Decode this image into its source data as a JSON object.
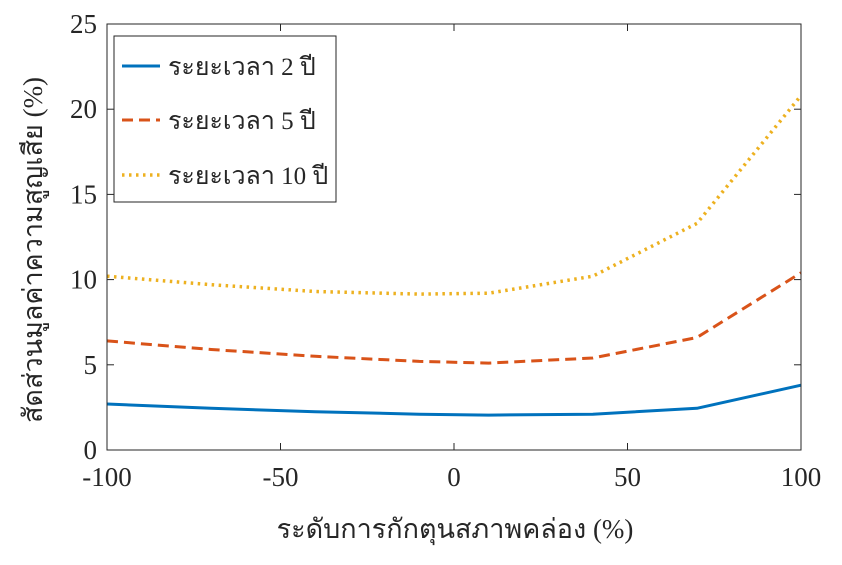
{
  "chart_data": {
    "type": "line",
    "title": "",
    "xlabel": "ระดับการกักตุนสภาพคล่อง (%)",
    "ylabel": "สัดส่วนมูลค่าความสูญเสีย (%)",
    "xlim": [
      -100,
      100
    ],
    "ylim": [
      0,
      25
    ],
    "xticks": [
      -100,
      -50,
      0,
      50,
      100
    ],
    "yticks": [
      0,
      5,
      10,
      15,
      20,
      25
    ],
    "x": [
      -100,
      -70,
      -40,
      -10,
      10,
      40,
      70,
      100
    ],
    "series": [
      {
        "name": "ระยะเวลา 2 ปี",
        "values": [
          2.7,
          2.45,
          2.25,
          2.1,
          2.05,
          2.1,
          2.45,
          3.8
        ],
        "color": "#0072BD",
        "style": "solid"
      },
      {
        "name": "ระยะเวลา 5 ปี",
        "values": [
          6.4,
          5.9,
          5.5,
          5.2,
          5.1,
          5.4,
          6.6,
          10.4
        ],
        "color": "#D95319",
        "style": "dashed"
      },
      {
        "name": "ระยะเวลา 10 ปี",
        "values": [
          10.2,
          9.7,
          9.3,
          9.15,
          9.2,
          10.2,
          13.3,
          20.8
        ],
        "color": "#EDB120",
        "style": "dotted"
      }
    ],
    "grid": false,
    "legend_position": "top-left"
  }
}
